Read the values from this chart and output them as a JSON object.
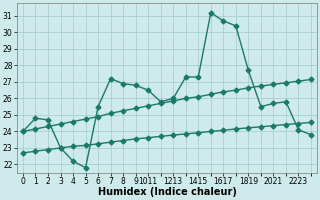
{
  "line1_x": [
    0,
    1,
    2,
    3,
    4,
    5,
    6,
    7,
    8,
    9,
    10,
    11,
    12,
    13,
    14,
    15,
    16,
    17,
    18,
    19,
    20,
    21,
    22,
    23
  ],
  "line1_y": [
    24.0,
    24.8,
    24.7,
    23.0,
    22.2,
    21.8,
    25.5,
    27.2,
    26.9,
    26.8,
    26.5,
    25.8,
    26.0,
    27.3,
    27.3,
    31.2,
    30.7,
    30.4,
    27.7,
    25.5,
    25.7,
    25.8,
    24.1,
    23.8
  ],
  "line2_x": [
    0,
    1,
    2,
    3,
    4,
    5,
    6,
    7,
    8,
    9,
    10,
    11,
    12,
    13,
    14,
    15,
    16,
    17,
    18,
    19,
    20,
    21,
    22,
    23
  ],
  "line2_y": [
    24.0,
    24.15,
    24.3,
    24.45,
    24.6,
    24.75,
    24.9,
    25.1,
    25.25,
    25.4,
    25.55,
    25.7,
    25.85,
    26.0,
    26.1,
    26.25,
    26.4,
    26.5,
    26.65,
    26.75,
    26.85,
    26.95,
    27.05,
    27.15
  ],
  "line3_x": [
    0,
    1,
    2,
    3,
    4,
    5,
    6,
    7,
    8,
    9,
    10,
    11,
    12,
    13,
    14,
    15,
    16,
    17,
    18,
    19,
    20,
    21,
    22,
    23
  ],
  "line3_y": [
    22.7,
    22.8,
    22.9,
    23.0,
    23.1,
    23.15,
    23.25,
    23.35,
    23.45,
    23.55,
    23.62,
    23.7,
    23.78,
    23.85,
    23.92,
    24.0,
    24.07,
    24.15,
    24.22,
    24.28,
    24.35,
    24.42,
    24.48,
    24.55
  ],
  "color": "#1a7a6a",
  "bg_color": "#ceeaea",
  "grid_color": "#aacece",
  "xlabel": "Humidex (Indice chaleur)",
  "ylabel_ticks": [
    22,
    23,
    24,
    25,
    26,
    27,
    28,
    29,
    30,
    31
  ],
  "xlim": [
    -0.5,
    23.5
  ],
  "ylim": [
    21.5,
    31.8
  ],
  "marker": "D",
  "markersize": 2.5,
  "linewidth": 1.0,
  "xlabel_fontsize": 7,
  "tick_fontsize": 5.5
}
